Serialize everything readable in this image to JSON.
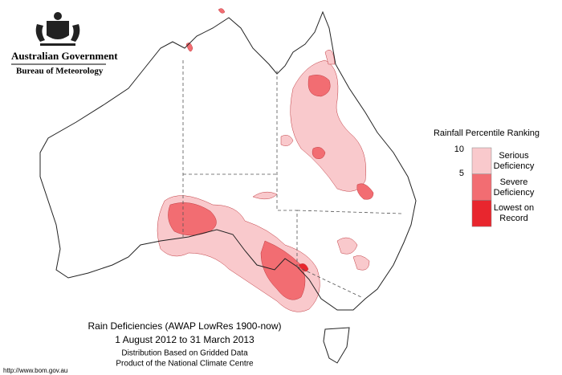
{
  "header": {
    "agency": "Australian Government",
    "bureau": "Bureau of Meteorology"
  },
  "legend": {
    "title": "Rainfall Percentile Ranking",
    "ticks": [
      10,
      5
    ],
    "items": [
      {
        "label": "Serious Deficiency",
        "color": "#f9c9cc"
      },
      {
        "label": "Severe Deficiency",
        "color": "#f26d72"
      },
      {
        "label": "Lowest on Record",
        "color": "#e8262e"
      }
    ]
  },
  "caption": {
    "title": "Rain Deficiencies (AWAP LowRes 1900-now)",
    "period": "1 August 2012 to 31 March 2013",
    "method": "Distribution Based on Gridded Data",
    "source": "Product of the National Climate Centre"
  },
  "url": "http://www.bom.gov.au"
}
